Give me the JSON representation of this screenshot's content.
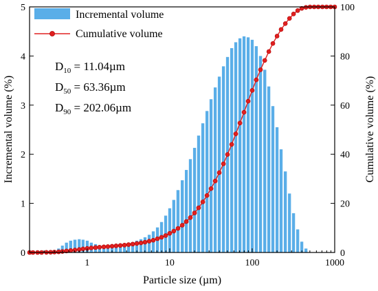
{
  "chart_data": {
    "type": "bar+line",
    "xlabel": "Particle size (µm)",
    "ylabel_left": "Incremental volume (%)",
    "ylabel_right": "Cumulative volume (%)",
    "x_scale": "log",
    "xlim": [
      0.2,
      1000
    ],
    "ylim_left": [
      0,
      5
    ],
    "ylim_right": [
      0,
      100
    ],
    "x_ticks": [
      {
        "value": 1,
        "label": "1"
      },
      {
        "value": 10,
        "label": "10"
      },
      {
        "value": 100,
        "label": "100"
      },
      {
        "value": 1000,
        "label": "1000"
      }
    ],
    "yleft_ticks": [
      {
        "value": 0,
        "label": "0"
      },
      {
        "value": 1,
        "label": "1"
      },
      {
        "value": 2,
        "label": "2"
      },
      {
        "value": 3,
        "label": "3"
      },
      {
        "value": 4,
        "label": "4"
      },
      {
        "value": 5,
        "label": "5"
      }
    ],
    "yright_ticks": [
      {
        "value": 0,
        "label": "0"
      },
      {
        "value": 20,
        "label": "20"
      },
      {
        "value": 40,
        "label": "40"
      },
      {
        "value": 60,
        "label": "60"
      },
      {
        "value": 80,
        "label": "80"
      },
      {
        "value": 100,
        "label": "100"
      }
    ],
    "legend": {
      "placement": "top-left",
      "entries": [
        {
          "label": "Incremental volume",
          "kind": "bar"
        },
        {
          "label": "Cumulative volume",
          "kind": "line-marker"
        }
      ]
    },
    "annotations": [
      {
        "prefix": "D",
        "sub": "10",
        "text": " = 11.04µm"
      },
      {
        "prefix": "D",
        "sub": "50",
        "text": " = 63.36µm"
      },
      {
        "prefix": "D",
        "sub": "90",
        "text": " = 202.06µm"
      }
    ],
    "colors": {
      "bar": "#5aaee8",
      "line": "#e02020",
      "marker_fill": "#e02020"
    },
    "bar_series": {
      "name": "Incremental volume",
      "x": [
        0.4,
        0.45,
        0.5,
        0.56,
        0.63,
        0.71,
        0.8,
        0.89,
        1.0,
        1.12,
        1.26,
        1.41,
        1.59,
        1.78,
        2.0,
        2.24,
        2.52,
        2.83,
        3.17,
        3.56,
        3.99,
        4.48,
        5.02,
        5.64,
        6.32,
        7.1,
        7.96,
        8.93,
        10.0,
        11.2,
        12.6,
        14.2,
        15.9,
        17.8,
        20.0,
        22.4,
        25.2,
        28.3,
        31.7,
        35.6,
        39.9,
        44.8,
        50.2,
        56.4,
        63.2,
        71.0,
        79.6,
        89.3,
        100,
        112,
        126,
        142,
        159,
        178,
        200,
        224,
        252,
        283,
        317,
        356,
        399,
        448
      ],
      "values": [
        0.04,
        0.08,
        0.14,
        0.2,
        0.24,
        0.26,
        0.27,
        0.26,
        0.24,
        0.2,
        0.17,
        0.14,
        0.13,
        0.12,
        0.12,
        0.13,
        0.14,
        0.16,
        0.18,
        0.21,
        0.24,
        0.27,
        0.31,
        0.36,
        0.43,
        0.51,
        0.62,
        0.75,
        0.9,
        1.07,
        1.27,
        1.47,
        1.68,
        1.9,
        2.13,
        2.38,
        2.63,
        2.88,
        3.12,
        3.36,
        3.58,
        3.79,
        3.98,
        4.16,
        4.28,
        4.36,
        4.4,
        4.38,
        4.33,
        4.2,
        4.0,
        3.72,
        3.38,
        2.98,
        2.55,
        2.1,
        1.65,
        1.2,
        0.8,
        0.47,
        0.22,
        0.08
      ]
    },
    "line_series": {
      "name": "Cumulative volume",
      "x": [
        0.2,
        0.22,
        0.25,
        0.28,
        0.32,
        0.36,
        0.4,
        0.45,
        0.5,
        0.56,
        0.63,
        0.71,
        0.8,
        0.89,
        1.0,
        1.12,
        1.26,
        1.41,
        1.59,
        1.78,
        2.0,
        2.24,
        2.52,
        2.83,
        3.17,
        3.56,
        3.99,
        4.48,
        5.02,
        5.64,
        6.32,
        7.1,
        7.96,
        8.93,
        10.0,
        11.2,
        12.6,
        14.2,
        15.9,
        17.8,
        20.0,
        22.4,
        25.2,
        28.3,
        31.7,
        35.6,
        39.9,
        44.8,
        50.2,
        56.4,
        63.2,
        71.0,
        79.6,
        89.3,
        100,
        112,
        126,
        142,
        159,
        178,
        200,
        224,
        252,
        283,
        317,
        356,
        399,
        448,
        502,
        564,
        632,
        710,
        796,
        893,
        1000
      ],
      "values": [
        0.0,
        0.0,
        0.0,
        0.0,
        0.05,
        0.1,
        0.15,
        0.25,
        0.4,
        0.6,
        0.8,
        1.0,
        1.2,
        1.45,
        1.65,
        1.85,
        2.0,
        2.15,
        2.3,
        2.4,
        2.55,
        2.7,
        2.85,
        3.0,
        3.2,
        3.4,
        3.65,
        3.9,
        4.2,
        4.6,
        5.0,
        5.6,
        6.2,
        6.9,
        7.8,
        8.7,
        9.8,
        11.1,
        12.6,
        14.2,
        16.1,
        18.2,
        20.6,
        23.2,
        26.0,
        29.1,
        32.5,
        36.1,
        39.9,
        44.0,
        48.3,
        52.7,
        57.1,
        61.6,
        66.0,
        70.3,
        74.4,
        78.2,
        81.8,
        85.1,
        88.1,
        90.8,
        93.2,
        95.3,
        97.1,
        98.5,
        99.4,
        99.8,
        100.0,
        100.0,
        100.0,
        100.0,
        100.0,
        100.0,
        100.0
      ]
    }
  }
}
